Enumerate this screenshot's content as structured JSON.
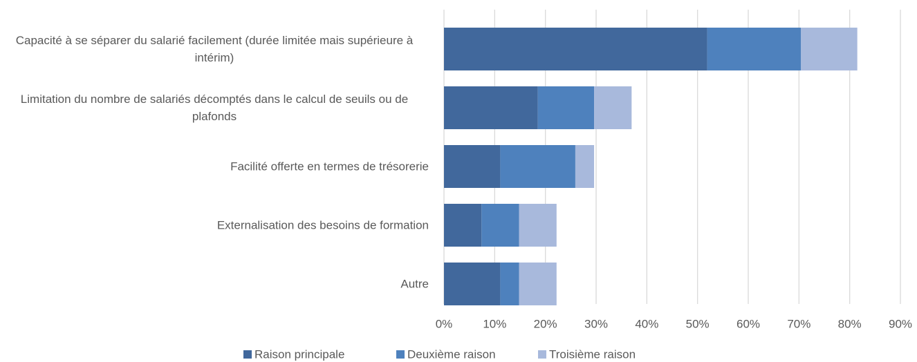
{
  "chart_data": {
    "type": "stacked-barh",
    "categories": [
      "Capacité à se séparer du salarié facilement (durée limitée mais supérieure à intérim)",
      "Limitation du nombre de salariés décomptés dans le calcul de seuils ou de plafonds",
      "Facilité offerte en termes de trésorerie",
      "Externalisation des besoins de formation",
      "Autre"
    ],
    "series": [
      {
        "name": "Raison principale",
        "color": "#41689c",
        "values": [
          51.9,
          18.5,
          11.1,
          7.4,
          11.1
        ]
      },
      {
        "name": "Deuxième raison",
        "color": "#4e81bd",
        "values": [
          18.5,
          11.1,
          14.8,
          7.4,
          3.7
        ]
      },
      {
        "name": "Troisième raison",
        "color": "#a8b9dc",
        "values": [
          11.1,
          7.4,
          3.7,
          7.4,
          7.4
        ]
      }
    ],
    "xlim": [
      0,
      90
    ],
    "xticks": [
      {
        "value": 0,
        "label": "0%"
      },
      {
        "value": 10,
        "label": "10%"
      },
      {
        "value": 20,
        "label": "20%"
      },
      {
        "value": 30,
        "label": "30%"
      },
      {
        "value": 40,
        "label": "40%"
      },
      {
        "value": 50,
        "label": "50%"
      },
      {
        "value": 60,
        "label": "60%"
      },
      {
        "value": 70,
        "label": "70%"
      },
      {
        "value": 80,
        "label": "80%"
      },
      {
        "value": 90,
        "label": "90%"
      }
    ],
    "grid": true,
    "legend": "bottom"
  }
}
